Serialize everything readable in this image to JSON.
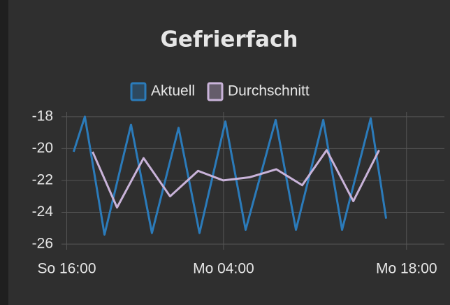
{
  "chart_data": {
    "type": "line",
    "title": "Gefrierfach",
    "xlim": [
      15.6,
      44.9
    ],
    "ylim": [
      -26,
      -17.7
    ],
    "xticks": [
      {
        "value": 16,
        "label": "So 16:00"
      },
      {
        "value": 28,
        "label": "Mo 04:00"
      },
      {
        "value": 42,
        "label": "Mo 18:00"
      }
    ],
    "yticks": [
      -18,
      -20,
      -22,
      -24,
      -26
    ],
    "grid": true,
    "series": [
      {
        "name": "Aktuell",
        "color": "#2b7bba",
        "x": [
          16.53,
          17.39,
          18.89,
          20.92,
          22.52,
          24.56,
          26.16,
          28.14,
          29.69,
          31.99,
          33.54,
          35.63,
          37.07,
          39.26,
          40.44
        ],
        "values": [
          -20.2,
          -18.0,
          -25.4,
          -18.5,
          -25.3,
          -18.7,
          -25.3,
          -18.3,
          -25.1,
          -18.2,
          -25.1,
          -18.2,
          -25.1,
          -18.1,
          -24.4
        ]
      },
      {
        "name": "Durchschnitt",
        "color": "#c9b3d9",
        "x": [
          17.98,
          19.85,
          21.88,
          23.91,
          26.05,
          27.98,
          30.01,
          32.04,
          34.02,
          35.89,
          37.93,
          39.9
        ],
        "values": [
          -20.2,
          -23.7,
          -20.6,
          -23.0,
          -21.4,
          -22.0,
          -21.8,
          -21.3,
          -22.3,
          -20.1,
          -23.3,
          -20.1
        ]
      }
    ]
  }
}
